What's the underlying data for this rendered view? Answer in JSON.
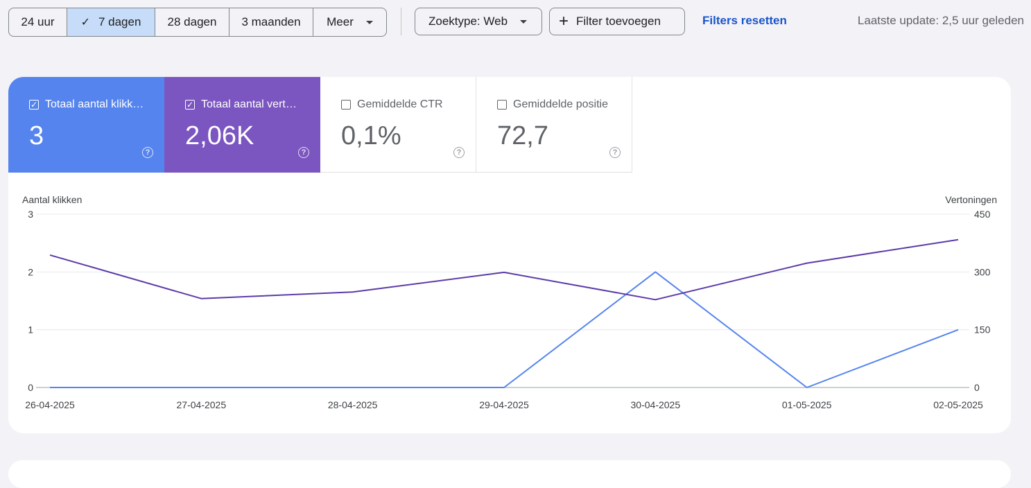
{
  "toolbar": {
    "ranges": [
      {
        "label": "24 uur",
        "active": false
      },
      {
        "label": "7 dagen",
        "active": true
      },
      {
        "label": "28 dagen",
        "active": false
      },
      {
        "label": "3 maanden",
        "active": false
      },
      {
        "label": "Meer",
        "active": false
      }
    ],
    "search_type": "Zoektype: Web",
    "add_filter": "Filter toevoegen",
    "reset_filters": "Filters resetten",
    "last_update": "Laatste update: 2,5 uur geleden"
  },
  "metrics": [
    {
      "label": "Totaal aantal klikk…",
      "value": "3",
      "checked": true,
      "color": "#5584ee"
    },
    {
      "label": "Totaal aantal vert…",
      "value": "2,06K",
      "checked": true,
      "color": "#7b56c1"
    },
    {
      "label": "Gemiddelde CTR",
      "value": "0,1%",
      "checked": false
    },
    {
      "label": "Gemiddelde positie",
      "value": "72,7",
      "checked": false
    }
  ],
  "chart_data": {
    "type": "line",
    "left_axis_label": "Aantal klikken",
    "right_axis_label": "Vertoningen",
    "left_ticks": [
      "0",
      "1",
      "2",
      "3"
    ],
    "right_ticks": [
      "0",
      "150",
      "300",
      "450"
    ],
    "left_range": [
      0,
      3
    ],
    "right_range": [
      0,
      450
    ],
    "x": [
      "26-04-2025",
      "27-04-2025",
      "28-04-2025",
      "29-04-2025",
      "30-04-2025",
      "01-05-2025",
      "02-05-2025"
    ],
    "series": [
      {
        "name": "Totaal aantal klikken",
        "axis": "left",
        "color": "#5584ee",
        "values": [
          0,
          0,
          0,
          0,
          2,
          0,
          1
        ]
      },
      {
        "name": "Totaal aantal vertoningen",
        "axis": "right",
        "color": "#5c3aa8",
        "values": [
          344,
          231,
          248,
          299,
          228,
          323,
          384
        ]
      }
    ],
    "grid": true
  }
}
